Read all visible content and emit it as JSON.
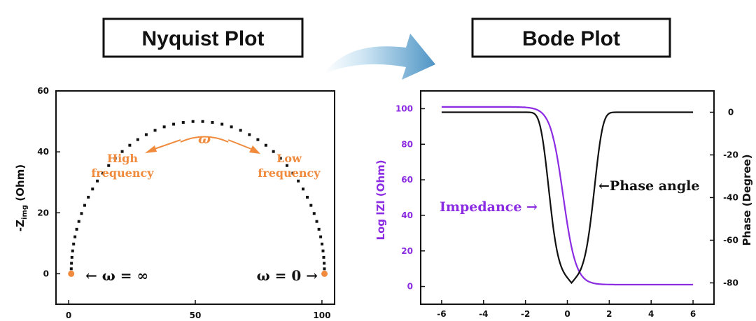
{
  "titles": {
    "left": "Nyquist Plot",
    "right": "Bode Plot"
  },
  "colors": {
    "orange": "#f08a3c",
    "purple": "#8b2be2",
    "black": "#111111",
    "arrow_light": "#cfe6f4",
    "arrow_dark": "#4f95c5"
  },
  "chart_data": [
    {
      "type": "scatter",
      "title": "Nyquist Plot",
      "xlabel": "",
      "ylabel_main": "-Z",
      "ylabel_sub": "img",
      "ylabel_rest": " (Ohm)",
      "xlim": [
        -5,
        105
      ],
      "ylim": [
        -10,
        60
      ],
      "xticks": [
        0,
        50,
        100
      ],
      "yticks": [
        0,
        20,
        40,
        60
      ],
      "grid": false,
      "series": [
        {
          "kind": "semicircle",
          "center": [
            51,
            0
          ],
          "radius": 50,
          "points": 52,
          "color": "#111111"
        }
      ],
      "endpoints": [
        [
          1,
          0
        ],
        [
          101,
          0
        ]
      ],
      "annotations": {
        "omega": "ω",
        "high1": "High",
        "high2": "frequency",
        "low1": "Low",
        "low2": "frequency",
        "w_inf": "← ω = ∞",
        "w_zero": "ω = 0 →"
      }
    },
    {
      "type": "line",
      "title": "Bode Plot",
      "xlabel": "",
      "ylabel": "Log lZl (Ohm)",
      "y2label": "Phase (Degree)",
      "xlim": [
        -7,
        7
      ],
      "ylim": [
        -10,
        110
      ],
      "y2lim": [
        -90,
        10
      ],
      "xticks": [
        -6,
        -4,
        -2,
        0,
        2,
        4,
        6
      ],
      "yticks": [
        0,
        20,
        40,
        60,
        80,
        100
      ],
      "y2ticks": [
        0,
        -20,
        -40,
        -60,
        -80
      ],
      "grid": false,
      "series": [
        {
          "name": "Impedance",
          "axis": "left",
          "color": "#8b2be2",
          "sample_x": [
            -6,
            -2,
            -1,
            -0.5,
            0,
            1,
            2,
            6
          ],
          "sample_y": [
            101,
            100,
            86,
            59,
            20,
            2,
            1,
            1
          ]
        },
        {
          "name": "Phase angle",
          "axis": "right",
          "color": "#111111",
          "sample_x": [
            -6,
            -2,
            -1,
            0.2,
            1,
            2,
            6
          ],
          "sample_y": [
            0,
            -2,
            -33,
            -80,
            -52,
            -11,
            0
          ]
        }
      ],
      "annotations": {
        "impedance": "Impedance →",
        "phase": "←Phase angle"
      }
    }
  ]
}
